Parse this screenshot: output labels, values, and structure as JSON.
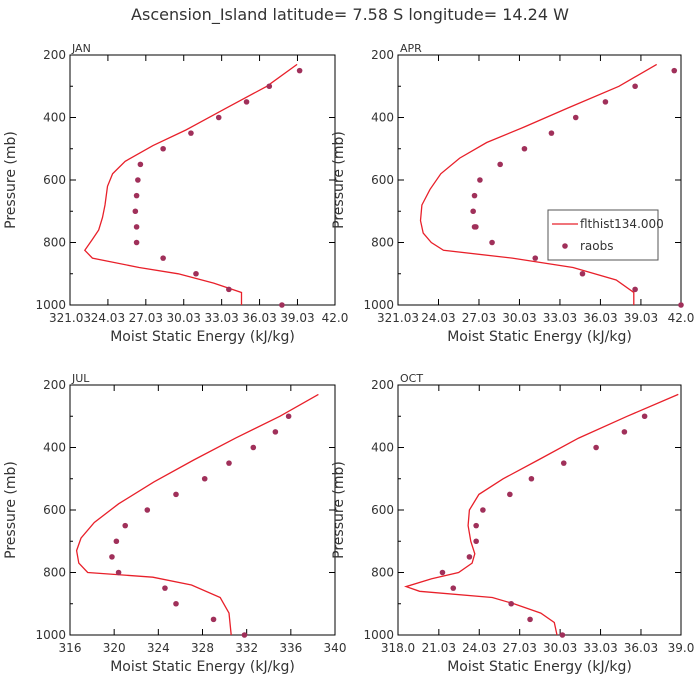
{
  "title": "Ascension_Island  latitude= 7.58 S longitude= 14.24 W",
  "colors": {
    "model": "#e8202a",
    "obs": "#a0305a",
    "frame": "#000000",
    "text": "#333333"
  },
  "chart_data": [
    {
      "type": "line",
      "panel": "JAN",
      "xlabel": "Moist Static Energy (kJ/kg)",
      "ylabel": "Pressure (mb)",
      "xlim": [
        321.03,
        342.0
      ],
      "ylim": [
        1000,
        200
      ],
      "xticks": [
        321.03,
        324.03,
        327.03,
        330.03,
        333.03,
        336.03,
        339.03,
        342.0
      ],
      "xtick_labels": [
        "321.03",
        "24.03",
        "27.03",
        "30.03",
        "33.03",
        "36.03",
        "39.03",
        "42.0"
      ],
      "yticks": [
        200,
        400,
        600,
        800,
        1000
      ],
      "series": [
        {
          "name": "flthist134.000",
          "kind": "line",
          "x": [
            339.0,
            336.6,
            333.4,
            330.2,
            327.6,
            325.4,
            324.4,
            324.0,
            323.8,
            323.6,
            323.3,
            322.8,
            322.2,
            322.8,
            326.5,
            329.6,
            332.4,
            334.6,
            334.6
          ],
          "y": [
            230,
            300,
            370,
            440,
            490,
            540,
            580,
            620,
            680,
            720,
            760,
            790,
            825,
            850,
            880,
            900,
            930,
            960,
            1000
          ]
        },
        {
          "name": "raobs",
          "kind": "scatter",
          "x": [
            339.2,
            336.8,
            335.0,
            332.8,
            330.6,
            328.4,
            326.6,
            326.4,
            326.3,
            326.2,
            326.3,
            326.3,
            328.4,
            331.0,
            333.6,
            337.8
          ],
          "y": [
            250,
            300,
            350,
            400,
            450,
            500,
            550,
            600,
            650,
            700,
            750,
            800,
            850,
            900,
            950,
            1000
          ]
        }
      ]
    },
    {
      "type": "line",
      "panel": "APR",
      "xlabel": "Moist Static Energy (kJ/kg)",
      "ylabel": "Pressure (mb)",
      "xlim": [
        321.03,
        342.0
      ],
      "ylim": [
        1000,
        200
      ],
      "xticks": [
        321.03,
        324.03,
        327.03,
        330.03,
        333.03,
        336.03,
        339.03,
        342.0
      ],
      "xtick_labels": [
        "321.03",
        "24.03",
        "27.03",
        "30.03",
        "33.03",
        "36.03",
        "39.03",
        "42.0"
      ],
      "yticks": [
        200,
        400,
        600,
        800,
        1000
      ],
      "legend": {
        "position": "right",
        "entries": [
          "flthist134.000",
          "raobs"
        ]
      },
      "series": [
        {
          "name": "flthist134.000",
          "kind": "line",
          "x": [
            340.2,
            337.4,
            333.6,
            330.4,
            327.6,
            325.6,
            324.2,
            323.4,
            322.8,
            322.7,
            322.9,
            323.5,
            324.4,
            329.5,
            334.0,
            337.2,
            338.5,
            338.5
          ],
          "y": [
            230,
            300,
            370,
            430,
            480,
            530,
            580,
            630,
            680,
            730,
            770,
            800,
            825,
            850,
            880,
            920,
            960,
            1000
          ]
        },
        {
          "name": "raobs",
          "kind": "scatter",
          "x": [
            341.5,
            338.6,
            336.4,
            334.2,
            332.4,
            330.4,
            328.6,
            327.1,
            326.7,
            326.6,
            326.7,
            326.8,
            328.0,
            331.2,
            334.7,
            338.6,
            342.0
          ],
          "y": [
            250,
            300,
            350,
            400,
            450,
            500,
            550,
            600,
            650,
            700,
            750,
            750,
            800,
            850,
            900,
            950,
            1000
          ]
        }
      ]
    },
    {
      "type": "line",
      "panel": "JUL",
      "xlabel": "Moist Static Energy (kJ/kg)",
      "ylabel": "Pressure (mb)",
      "xlim": [
        316,
        340
      ],
      "ylim": [
        1000,
        200
      ],
      "xticks": [
        316,
        320,
        324,
        328,
        332,
        336,
        340
      ],
      "xtick_labels": [
        "316",
        "320",
        "324",
        "328",
        "332",
        "336",
        "340"
      ],
      "yticks": [
        200,
        400,
        600,
        800,
        1000
      ],
      "series": [
        {
          "name": "flthist134.000",
          "kind": "line",
          "x": [
            338.5,
            335.0,
            331.0,
            327.2,
            323.6,
            320.4,
            318.2,
            317.0,
            316.6,
            316.8,
            317.6,
            323.5,
            327.0,
            329.6,
            330.4,
            330.6
          ],
          "y": [
            230,
            300,
            370,
            440,
            510,
            580,
            640,
            690,
            730,
            770,
            800,
            815,
            840,
            880,
            930,
            1000
          ]
        },
        {
          "name": "raobs",
          "kind": "scatter",
          "x": [
            335.8,
            334.6,
            332.6,
            330.4,
            328.2,
            325.6,
            323.0,
            321.0,
            320.2,
            319.8,
            320.4,
            324.6,
            325.6,
            329.0,
            331.8
          ],
          "y": [
            300,
            350,
            400,
            450,
            500,
            550,
            600,
            650,
            700,
            750,
            800,
            850,
            900,
            950,
            1000
          ]
        }
      ]
    },
    {
      "type": "line",
      "panel": "OCT",
      "xlabel": "Moist Static Energy (kJ/kg)",
      "ylabel": "Pressure (mb)",
      "xlim": [
        318.0,
        339.0
      ],
      "ylim": [
        1000,
        200
      ],
      "xticks": [
        318.0,
        321.03,
        324.03,
        327.03,
        330.03,
        333.03,
        336.03,
        339.0
      ],
      "xtick_labels": [
        "318.0",
        "21.03",
        "24.03",
        "27.03",
        "30.03",
        "33.03",
        "36.03",
        "39.0"
      ],
      "yticks": [
        200,
        400,
        600,
        800,
        1000
      ],
      "series": [
        {
          "name": "flthist134.000",
          "kind": "line",
          "x": [
            338.8,
            335.0,
            331.4,
            328.4,
            325.8,
            324.0,
            323.3,
            323.2,
            323.4,
            323.7,
            323.5,
            322.5,
            320.5,
            318.6,
            319.6,
            325.0,
            326.6,
            328.6,
            329.6,
            329.8
          ],
          "y": [
            230,
            300,
            370,
            440,
            500,
            550,
            600,
            650,
            700,
            740,
            770,
            800,
            820,
            845,
            860,
            880,
            900,
            930,
            960,
            1000
          ]
        },
        {
          "name": "raobs",
          "kind": "scatter",
          "x": [
            336.3,
            334.8,
            332.7,
            330.3,
            327.9,
            326.3,
            324.3,
            323.8,
            323.8,
            323.3,
            321.3,
            322.1,
            326.4,
            327.8,
            330.2
          ],
          "y": [
            300,
            350,
            400,
            450,
            500,
            550,
            600,
            650,
            700,
            750,
            800,
            850,
            900,
            950,
            1000
          ]
        }
      ]
    }
  ]
}
